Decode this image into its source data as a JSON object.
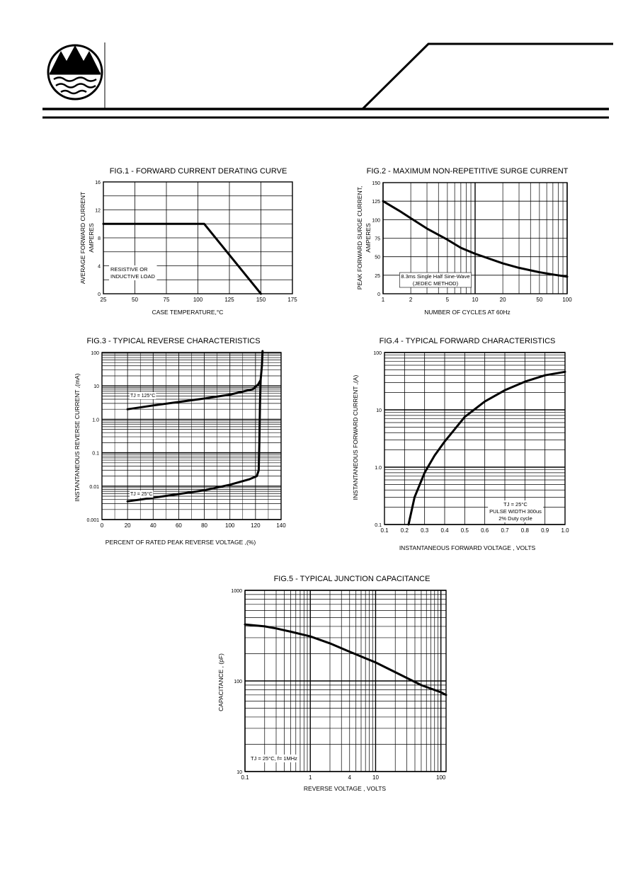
{
  "chart_data": [
    {
      "id": "fig1",
      "type": "line",
      "title": "FIG.1 - FORWARD CURRENT DERATING CURVE",
      "xlabel": "CASE TEMPERATURE,°C",
      "ylabel": [
        "AVERAGE FORWARD CURRENT",
        "AMPERES"
      ],
      "x_scale": "linear",
      "y_scale": "linear",
      "xlim": [
        25,
        175
      ],
      "ylim": [
        0,
        16
      ],
      "xticks": [
        "25",
        "50",
        "75",
        "100",
        "125",
        "150",
        "175"
      ],
      "yticks": [
        "0",
        "4",
        "8",
        "12",
        "16"
      ],
      "grid": true,
      "annotation": [
        "RESISTIVE OR",
        "INDUCTIVE LOAD"
      ],
      "series": [
        {
          "x": [
            25,
            105,
            150
          ],
          "y": [
            10,
            10,
            0
          ]
        }
      ]
    },
    {
      "id": "fig2",
      "type": "line",
      "title": "FIG.2 - MAXIMUM NON-REPETITIVE SURGE CURRENT",
      "xlabel": "NUMBER OF CYCLES AT 60Hz",
      "ylabel": [
        "PEAK FORWARD SURGE CURRENT,",
        "AMPERES"
      ],
      "x_scale": "log",
      "y_scale": "linear",
      "xlim": [
        1,
        100
      ],
      "ylim": [
        0,
        150
      ],
      "xticks": [
        "1",
        "2",
        "5",
        "10",
        "20",
        "50",
        "100"
      ],
      "yticks": [
        "0",
        "25",
        "50",
        "75",
        "100",
        "125",
        "150"
      ],
      "grid": true,
      "annotation": [
        "8.3ms Single Half Sine-Wave",
        "(JEDEC METHOD)"
      ],
      "series": [
        {
          "x": [
            1,
            1.5,
            2,
            3,
            5,
            7,
            10,
            20,
            30,
            50,
            70,
            100
          ],
          "y": [
            125,
            112,
            102,
            88,
            73,
            62,
            54,
            41,
            35,
            29,
            26,
            23
          ]
        }
      ]
    },
    {
      "id": "fig3",
      "type": "line",
      "title": "FIG.3 - TYPICAL REVERSE CHARACTERISTICS",
      "xlabel": "PERCENT OF RATED PEAK REVERSE VOLTAGE ,(%)",
      "ylabel": [
        "INSTANTANEOUS REVERSE CURRENT ,(mA)"
      ],
      "x_scale": "linear",
      "y_scale": "log",
      "xlim": [
        0,
        140
      ],
      "ylim": [
        0.001,
        100
      ],
      "xticks": [
        "0",
        "20",
        "40",
        "60",
        "80",
        "100",
        "120",
        "140"
      ],
      "yticks": [
        "0.001",
        "0.01",
        "0.1",
        "1.0",
        "10",
        "100"
      ],
      "grid": true,
      "series": [
        {
          "name": "TJ = 125°C",
          "x": [
            20,
            40,
            60,
            80,
            100,
            118,
            122,
            124,
            125,
            125.5
          ],
          "y": [
            2.0,
            2.6,
            3.3,
            4.2,
            5.5,
            8,
            11,
            15,
            40,
            110
          ]
        },
        {
          "name": "TJ = 25°C",
          "x": [
            20,
            40,
            60,
            80,
            100,
            115,
            121,
            122.5,
            123,
            123.5,
            124
          ],
          "y": [
            0.0035,
            0.0045,
            0.0058,
            0.0075,
            0.011,
            0.016,
            0.02,
            0.03,
            0.2,
            3,
            15
          ]
        }
      ]
    },
    {
      "id": "fig4",
      "type": "line",
      "title": "FIG.4 - TYPICAL FORWARD CHARACTERISTICS",
      "xlabel": "INSTANTANEOUS FORWARD VOLTAGE , VOLTS",
      "ylabel": [
        "INSTANTANEOUS  FORWARD CURRENT ,(A)"
      ],
      "x_scale": "linear",
      "y_scale": "log",
      "xlim": [
        0.1,
        1.0
      ],
      "ylim": [
        0.1,
        100
      ],
      "xticks": [
        "0.1",
        "0.2",
        "0.3",
        "0.4",
        "0.5",
        "0.6",
        "0.7",
        "0.8",
        "0.9",
        "1.0"
      ],
      "yticks": [
        "0.1",
        "1.0",
        "10",
        "100"
      ],
      "grid": true,
      "annotation": [
        "TJ = 25°C",
        "PULSE WIDTH 300us",
        "2% Duty cycle"
      ],
      "series": [
        {
          "x": [
            0.22,
            0.25,
            0.3,
            0.35,
            0.4,
            0.5,
            0.6,
            0.7,
            0.8,
            0.9,
            1.0
          ],
          "y": [
            0.1,
            0.3,
            0.8,
            1.6,
            2.8,
            7.5,
            14,
            22,
            31,
            40,
            46
          ]
        }
      ]
    },
    {
      "id": "fig5",
      "type": "line",
      "title": "FIG.5 - TYPICAL JUNCTION CAPACITANCE",
      "xlabel": "REVERSE VOLTAGE , VOLTS",
      "ylabel": [
        "CAPACITANCE , (pF)"
      ],
      "x_scale": "log",
      "y_scale": "log",
      "xlim": [
        0.1,
        120
      ],
      "ylim": [
        10,
        1000
      ],
      "xticks": [
        "0.1",
        "1",
        "4",
        "10",
        "100"
      ],
      "yticks": [
        "10",
        "100",
        "1000"
      ],
      "grid": true,
      "annotation": [
        "TJ = 25°C, f= 1MHz"
      ],
      "series": [
        {
          "x": [
            0.1,
            0.2,
            0.3,
            0.5,
            1,
            2,
            4,
            10,
            20,
            50,
            100,
            120
          ],
          "y": [
            420,
            400,
            380,
            350,
            310,
            260,
            210,
            160,
            125,
            90,
            75,
            70
          ]
        }
      ]
    }
  ]
}
